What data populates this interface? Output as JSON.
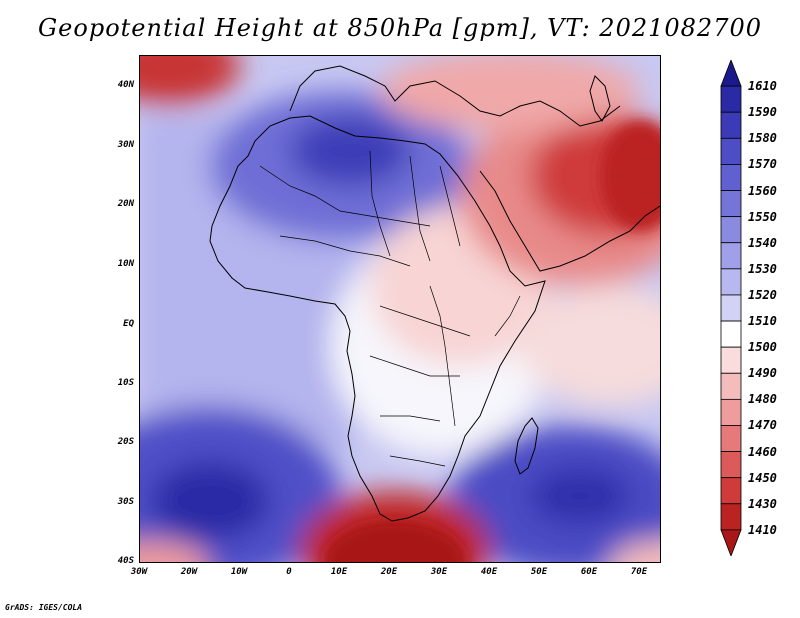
{
  "title": "Geopotential Height at 850hPa [gpm], VT: 2021082700",
  "footer": "GrADS: IGES/COLA",
  "map": {
    "lat_labels": [
      "40N",
      "30N",
      "20N",
      "10N",
      "EQ",
      "10S",
      "20S",
      "30S",
      "40S"
    ],
    "lon_labels": [
      "30W",
      "20W",
      "10W",
      "0",
      "10E",
      "20E",
      "30E",
      "40E",
      "50E",
      "60E",
      "70E"
    ],
    "lon_range": [
      -30,
      75
    ],
    "lat_range": [
      -40,
      45
    ]
  },
  "colorbar": {
    "labels": [
      "1610",
      "1590",
      "1580",
      "1570",
      "1560",
      "1550",
      "1540",
      "1530",
      "1520",
      "1510",
      "1500",
      "1490",
      "1480",
      "1470",
      "1460",
      "1450",
      "1430",
      "1410"
    ],
    "colors": [
      "#1a1a8c",
      "#2a2aa6",
      "#3b3bb8",
      "#4d4dc6",
      "#6060d0",
      "#7575d8",
      "#8a8ae0",
      "#a0a0e8",
      "#b8b8f0",
      "#d2d2f6",
      "#ffffff",
      "#fbdcdc",
      "#f5bcbc",
      "#ee9c9c",
      "#e67a7a",
      "#dc5a5a",
      "#cf3a3a",
      "#bb2222",
      "#a81818"
    ]
  }
}
